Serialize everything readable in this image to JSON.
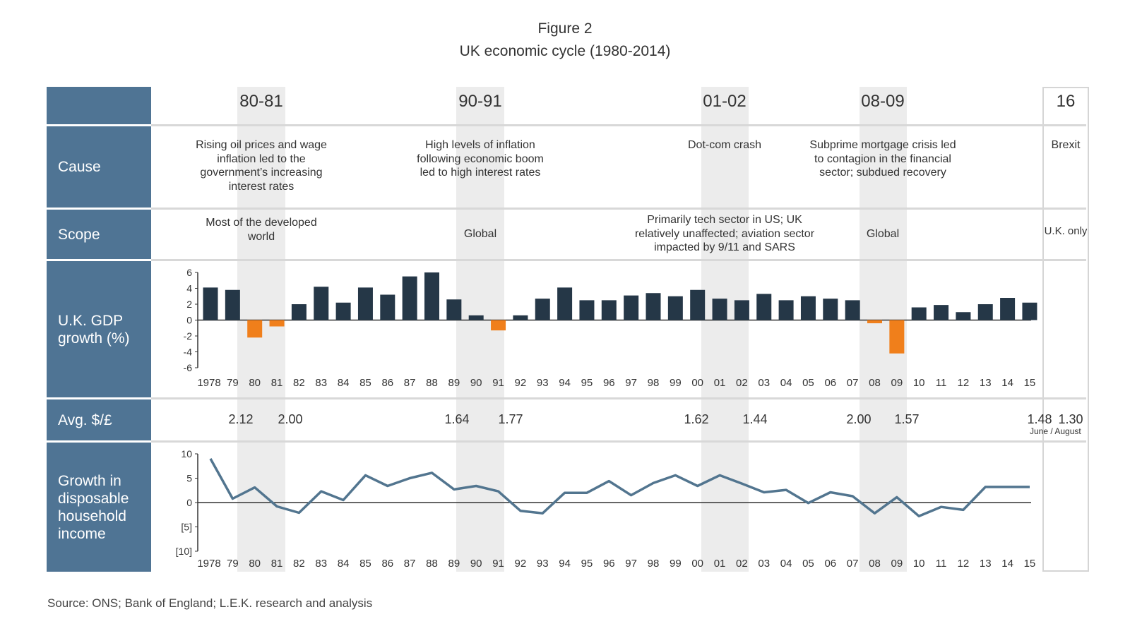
{
  "figure": {
    "label": "Figure 2",
    "title": "UK economic cycle (1980-2014)"
  },
  "rows": {
    "cause": "Cause",
    "scope": "Scope",
    "gdp": "U.K. GDP growth (%)",
    "fx": "Avg. $/£",
    "income": "Growth in disposable household income"
  },
  "periods": [
    {
      "label": "80-81",
      "cause": "Rising oil prices and wage inflation led to the government’s increasing interest rates",
      "scope": "Most of the developed world"
    },
    {
      "label": "90-91",
      "cause": "High levels of inflation following economic boom led to high interest rates",
      "scope": "Global"
    },
    {
      "label": "01-02",
      "cause": "Dot-com crash",
      "scope": "Primarily tech sector in US; UK relatively unaffected; aviation sector impacted by 9/11 and SARS"
    },
    {
      "label": "08-09",
      "cause": "Subprime mortgage crisis led to contagion in the financial sector; subdued recovery",
      "scope": "Global"
    },
    {
      "label": "16",
      "cause": "Brexit",
      "scope": "U.K. only"
    }
  ],
  "fx_rates": [
    {
      "label": "2.12"
    },
    {
      "label": "2.00"
    },
    {
      "label": "1.64"
    },
    {
      "label": "1.77"
    },
    {
      "label": "1.62"
    },
    {
      "label": "1.44"
    },
    {
      "label": "2.00"
    },
    {
      "label": "1.57"
    },
    {
      "label": "1.48"
    },
    {
      "label": "1.30"
    }
  ],
  "fx_note": "June / August",
  "source": "Source: ONS; Bank of England; L.E.K. research and analysis",
  "colors": {
    "header": "#4f7494",
    "bar_positive": "#253747",
    "bar_negative": "#f07f1b",
    "line": "#52758f",
    "shade": "#ececec"
  },
  "chart_data": [
    {
      "type": "bar",
      "categories": [
        "1978",
        "79",
        "80",
        "81",
        "82",
        "83",
        "84",
        "85",
        "86",
        "87",
        "88",
        "89",
        "90",
        "91",
        "92",
        "93",
        "94",
        "95",
        "96",
        "97",
        "98",
        "99",
        "00",
        "01",
        "02",
        "03",
        "04",
        "05",
        "06",
        "07",
        "08",
        "09",
        "10",
        "11",
        "12",
        "13",
        "14",
        "15"
      ],
      "values": [
        4.1,
        3.8,
        -2.2,
        -0.8,
        2.0,
        4.2,
        2.2,
        4.1,
        3.2,
        5.5,
        6.0,
        2.6,
        0.6,
        -1.3,
        0.6,
        2.7,
        4.1,
        2.5,
        2.5,
        3.1,
        3.4,
        3.0,
        3.8,
        2.7,
        2.5,
        3.3,
        2.5,
        3.0,
        2.7,
        2.5,
        -0.4,
        -4.2,
        1.6,
        1.9,
        1.0,
        2.0,
        2.8,
        2.2
      ],
      "yticks": [
        "6",
        "4",
        "2",
        "0",
        "-2",
        "-4",
        "-6"
      ],
      "ylim": [
        -6,
        6
      ]
    },
    {
      "type": "line",
      "x": [
        "1978",
        "79",
        "80",
        "81",
        "82",
        "83",
        "84",
        "85",
        "86",
        "87",
        "88",
        "89",
        "90",
        "91",
        "92",
        "93",
        "94",
        "95",
        "96",
        "97",
        "98",
        "99",
        "00",
        "01",
        "02",
        "03",
        "04",
        "05",
        "06",
        "07",
        "08",
        "09",
        "10",
        "11",
        "12",
        "13",
        "14",
        "15"
      ],
      "values": [
        9.0,
        0.8,
        3.1,
        -0.8,
        -2.1,
        2.3,
        0.5,
        5.6,
        3.4,
        5.0,
        6.1,
        2.7,
        3.4,
        2.3,
        -1.7,
        -2.2,
        2.0,
        2.0,
        4.4,
        1.5,
        4.0,
        5.6,
        3.4,
        5.6,
        3.9,
        2.1,
        2.6,
        -0.1,
        2.1,
        1.3,
        -2.2,
        1.1,
        -2.8,
        -0.9,
        -1.5,
        3.2,
        3.2,
        null
      ],
      "yticks": [
        "10",
        "5",
        "0",
        "[5]",
        "[10]"
      ],
      "ylim": [
        -10,
        10
      ]
    }
  ]
}
